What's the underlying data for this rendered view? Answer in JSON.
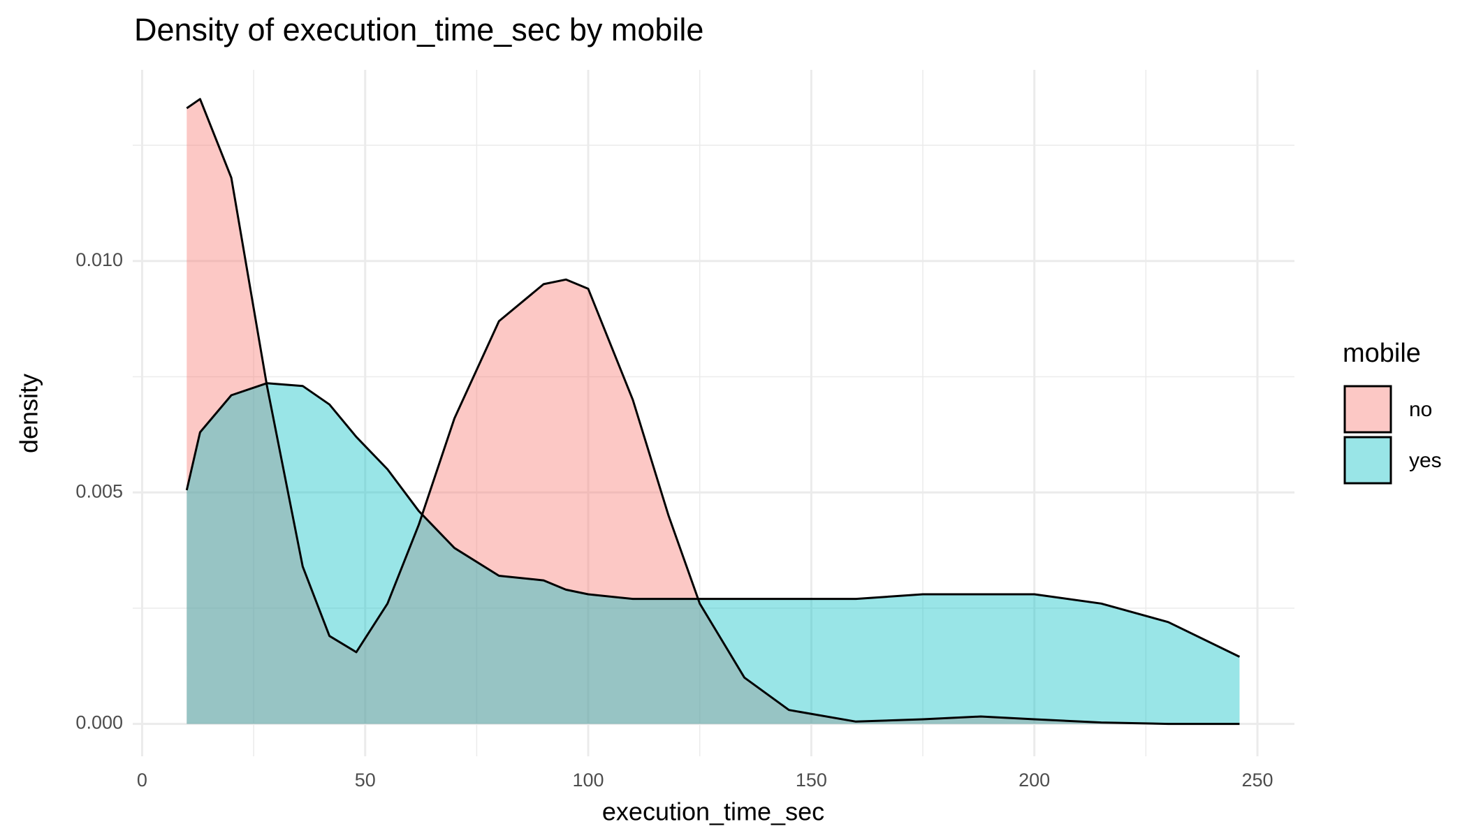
{
  "chart_data": {
    "type": "density",
    "title": "Density of execution_time_sec by mobile",
    "x_label": "execution_time_sec",
    "y_label": "density",
    "legend_title": "mobile",
    "legend_position": "right",
    "grid": true,
    "x": [
      10,
      13,
      20,
      28,
      36,
      42,
      48,
      55,
      62,
      70,
      80,
      90,
      95,
      100,
      110,
      118,
      125,
      135,
      145,
      160,
      175,
      188,
      200,
      215,
      230,
      246
    ],
    "series": [
      {
        "name": "no",
        "color": "#F8766D",
        "values": [
          0.0133,
          0.0135,
          0.0118,
          0.0073,
          0.0034,
          0.0019,
          0.00155,
          0.0026,
          0.0043,
          0.0066,
          0.0087,
          0.0095,
          0.0096,
          0.0094,
          0.007,
          0.0045,
          0.0026,
          0.001,
          0.0003,
          5e-05,
          0.0001,
          0.00016,
          0.0001,
          3e-05,
          0.0,
          0.0
        ]
      },
      {
        "name": "yes",
        "color": "#00BFC4",
        "values": [
          0.00505,
          0.0063,
          0.0071,
          0.00736,
          0.0073,
          0.0069,
          0.0062,
          0.0055,
          0.0046,
          0.0038,
          0.0032,
          0.0031,
          0.0029,
          0.0028,
          0.0027,
          0.0027,
          0.0027,
          0.0027,
          0.0027,
          0.0027,
          0.0028,
          0.0028,
          0.0028,
          0.0026,
          0.0022,
          0.00145
        ]
      }
    ],
    "xlim": [
      -2.1,
      258.3
    ],
    "xticks": [
      0,
      50,
      100,
      150,
      200,
      250
    ],
    "ylim": [
      -0.0007,
      0.01413
    ],
    "yticks": [
      {
        "value": 0,
        "label": "0.000"
      },
      {
        "value": 0.005,
        "label": "0.005"
      },
      {
        "value": 0.01,
        "label": "0.010"
      }
    ]
  }
}
